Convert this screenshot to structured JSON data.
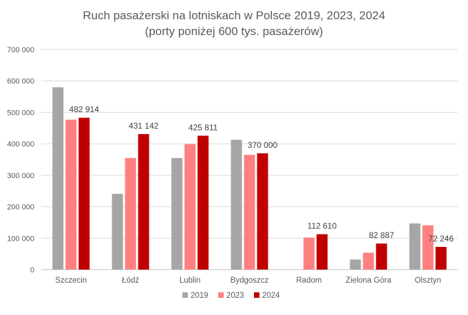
{
  "chart_data": {
    "type": "bar",
    "title_line1": "Ruch pasażerski na lotniskach w Polsce 2019, 2023, 2024",
    "title_line2": "(porty poniżej 600 tys. pasażerów)",
    "categories": [
      "Szczecin",
      "Łódź",
      "Lublin",
      "Bydgoszcz",
      "Radom",
      "Zielona Góra",
      "Olsztyn"
    ],
    "series": [
      {
        "name": "2019",
        "color": "#a6a6a6",
        "values": [
          580000,
          241000,
          355000,
          413000,
          0,
          32000,
          147000
        ]
      },
      {
        "name": "2023",
        "color": "#ff8080",
        "values": [
          477000,
          355000,
          399000,
          365000,
          102000,
          54000,
          141000
        ]
      },
      {
        "name": "2024",
        "color": "#c00000",
        "values": [
          482914,
          431142,
          425811,
          370000,
          112610,
          82887,
          72246
        ]
      }
    ],
    "data_labels_2024": [
      "482 914",
      "431 142",
      "425 811",
      "370 000",
      "112 610",
      "82 887",
      "72 246"
    ],
    "y_ticks": [
      "0",
      "100 000",
      "200 000",
      "300 000",
      "400 000",
      "500 000",
      "600 000",
      "700 000"
    ],
    "ylim": [
      0,
      700000
    ],
    "grid": true,
    "legend_position": "bottom"
  }
}
